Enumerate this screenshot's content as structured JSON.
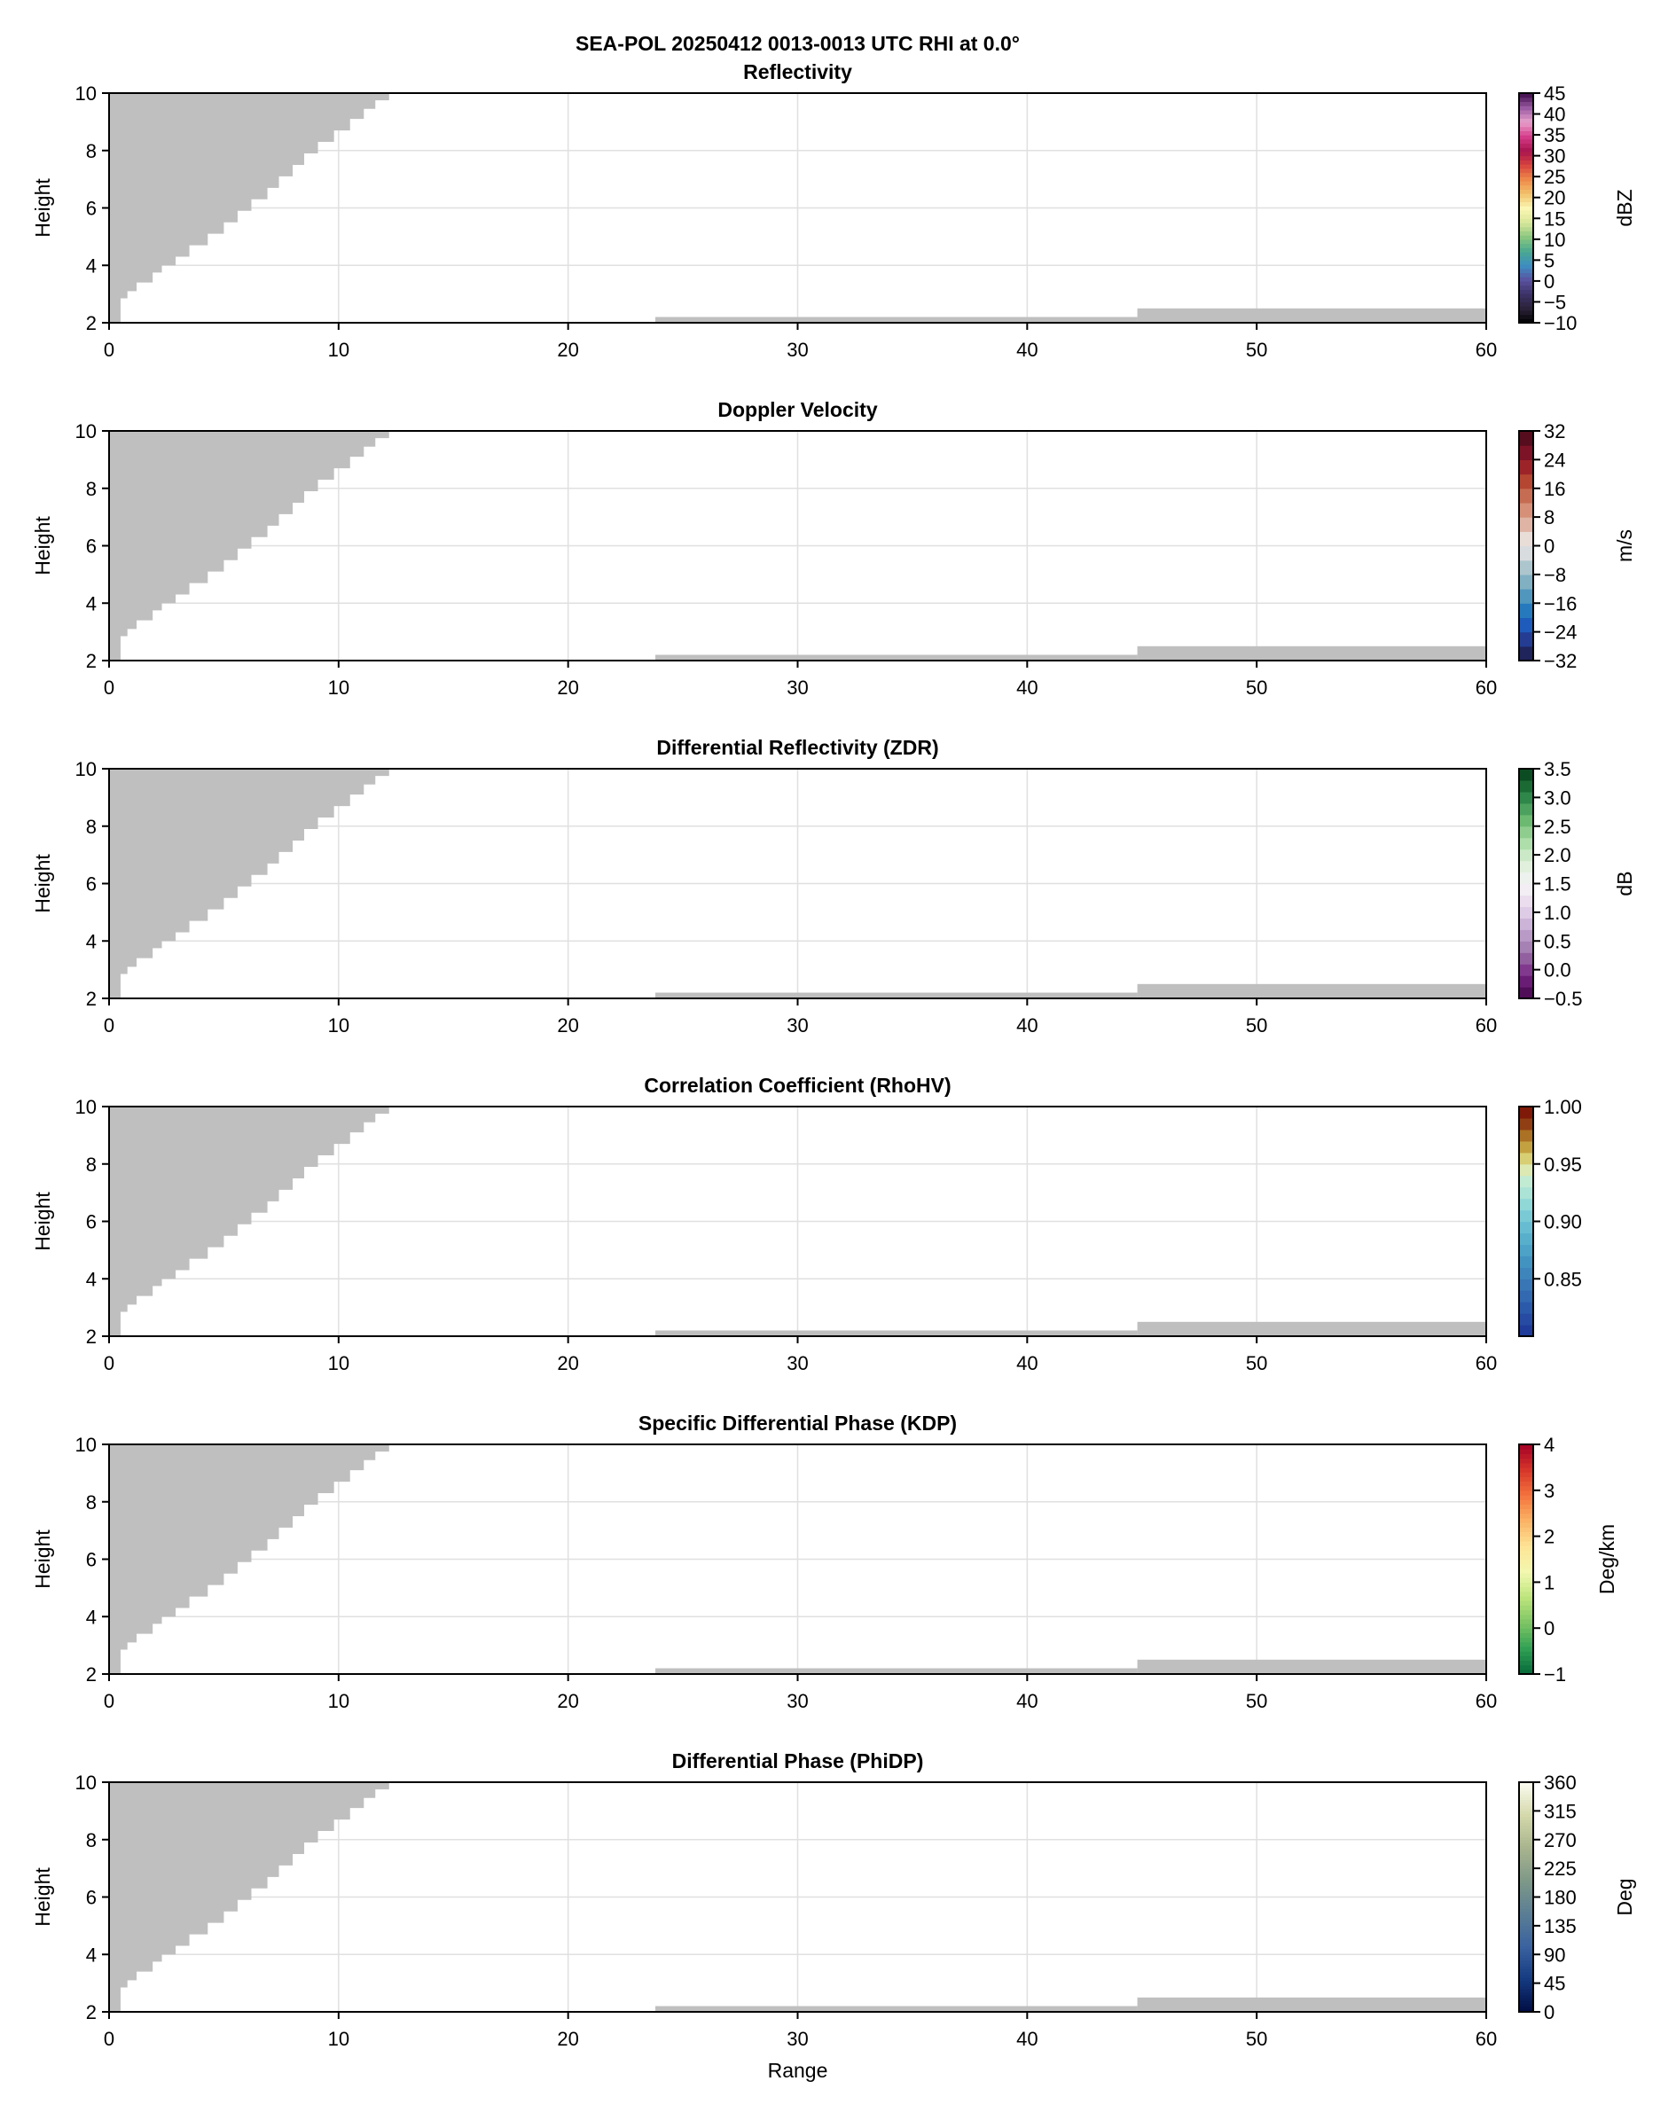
{
  "figure_title": "SEA-POL 20250412 0013-0013 UTC RHI at 0.0°",
  "chart_data": [
    {
      "type": "heatmap",
      "title": "Reflectivity",
      "xlabel": "",
      "ylabel": "Height",
      "xlim": [
        0,
        60
      ],
      "ylim": [
        2,
        10
      ],
      "xticks": [
        "0",
        "10",
        "20",
        "30",
        "40",
        "50",
        "60"
      ],
      "yticks": [
        "2",
        "4",
        "6",
        "8",
        "10"
      ],
      "grid": true,
      "colorbar": {
        "label": "dBZ",
        "range": [
          -10,
          45
        ],
        "ticks": [
          "45",
          "40",
          "35",
          "30",
          "25",
          "20",
          "15",
          "10",
          "5",
          "0",
          "−5",
          "−10"
        ],
        "tick_values": [
          45,
          40,
          35,
          30,
          25,
          20,
          15,
          10,
          5,
          0,
          -5,
          -10
        ],
        "levels": 55,
        "colors": [
          "#000000",
          "#2a2238",
          "#3c3266",
          "#5a52a0",
          "#3d8ec2",
          "#4aa88f",
          "#8ac77f",
          "#d8e79a",
          "#fbf6b4",
          "#f2c26c",
          "#ee8a4a",
          "#d8443e",
          "#a8144e",
          "#d63c8a",
          "#e8a2cc",
          "#9a5aa2",
          "#3c0a48"
        ]
      }
    },
    {
      "type": "heatmap",
      "title": "Doppler Velocity",
      "xlabel": "",
      "ylabel": "Height",
      "xlim": [
        0,
        60
      ],
      "ylim": [
        2,
        10
      ],
      "xticks": [
        "0",
        "10",
        "20",
        "30",
        "40",
        "50",
        "60"
      ],
      "yticks": [
        "2",
        "4",
        "6",
        "8",
        "10"
      ],
      "grid": true,
      "colorbar": {
        "label": "m/s",
        "range": [
          -32,
          32
        ],
        "ticks": [
          "32",
          "24",
          "16",
          "8",
          "0",
          "−8",
          "−16",
          "−24",
          "−32"
        ],
        "tick_values": [
          32,
          24,
          16,
          8,
          0,
          -8,
          -16,
          -24,
          -32
        ],
        "levels": 16,
        "colors": [
          "#1a1a40",
          "#25307a",
          "#2250b8",
          "#1a70be",
          "#4690bc",
          "#78acc0",
          "#a8c4cc",
          "#d8dcde",
          "#eaddd8",
          "#deb0a0",
          "#d48a70",
          "#c2644a",
          "#ae3a28",
          "#92182a",
          "#6e1024",
          "#400a16"
        ]
      }
    },
    {
      "type": "heatmap",
      "title": "Differential Reflectivity (ZDR)",
      "xlabel": "",
      "ylabel": "Height",
      "xlim": [
        0,
        60
      ],
      "ylim": [
        2,
        10
      ],
      "xticks": [
        "0",
        "10",
        "20",
        "30",
        "40",
        "50",
        "60"
      ],
      "yticks": [
        "2",
        "4",
        "6",
        "8",
        "10"
      ],
      "grid": true,
      "colorbar": {
        "label": "dB",
        "range": [
          -0.5,
          3.5
        ],
        "ticks": [
          "3.5",
          "3.0",
          "2.5",
          "2.0",
          "1.5",
          "1.0",
          "0.5",
          "0.0",
          "−0.5"
        ],
        "tick_values": [
          3.5,
          3.0,
          2.5,
          2.0,
          1.5,
          1.0,
          0.5,
          0.0,
          -0.5
        ],
        "levels": 20,
        "colors": [
          "#44084e",
          "#5e1466",
          "#7a2888",
          "#8c5498",
          "#a07aae",
          "#b494c2",
          "#c8b0d6",
          "#dcc8e4",
          "#eadcec",
          "#f2eef4",
          "#eef2ee",
          "#e0f0dc",
          "#c8e8c4",
          "#a8dca4",
          "#88c888",
          "#62b468",
          "#42985a",
          "#247c3e",
          "#145c2a",
          "#043e1a"
        ]
      }
    },
    {
      "type": "heatmap",
      "title": "Correlation Coefficient (RhoHV)",
      "xlabel": "",
      "ylabel": "Height",
      "xlim": [
        0,
        60
      ],
      "ylim": [
        2,
        10
      ],
      "xticks": [
        "0",
        "10",
        "20",
        "30",
        "40",
        "50",
        "60"
      ],
      "yticks": [
        "2",
        "4",
        "6",
        "8",
        "10"
      ],
      "grid": true,
      "colorbar": {
        "label": "",
        "range": [
          0.8,
          1.0
        ],
        "ticks": [
          "1.00",
          "0.95",
          "0.90",
          "0.85"
        ],
        "tick_values": [
          1.0,
          0.95,
          0.9,
          0.85
        ],
        "levels": 20,
        "colors": [
          "#1c3494",
          "#2444a0",
          "#2a54a8",
          "#3064ae",
          "#3672b4",
          "#3c82ba",
          "#4290c0",
          "#4aa0c6",
          "#56aecc",
          "#66bcd2",
          "#7acad6",
          "#92d8d8",
          "#aee4d6",
          "#c6ecd4",
          "#e2e8a8",
          "#d4c460",
          "#bc9030",
          "#a05e1c",
          "#84260c",
          "#7a1004"
        ]
      }
    },
    {
      "type": "heatmap",
      "title": "Specific Differential Phase (KDP)",
      "xlabel": "",
      "ylabel": "Height",
      "xlim": [
        0,
        60
      ],
      "ylim": [
        2,
        10
      ],
      "xticks": [
        "0",
        "10",
        "20",
        "30",
        "40",
        "50",
        "60"
      ],
      "yticks": [
        "2",
        "4",
        "6",
        "8",
        "10"
      ],
      "grid": true,
      "colorbar": {
        "label": "Deg/km",
        "range": [
          -1,
          4
        ],
        "ticks": [
          "4",
          "3",
          "2",
          "1",
          "0",
          "−1"
        ],
        "tick_values": [
          4,
          3,
          2,
          1,
          0,
          -1
        ],
        "levels": 50,
        "colors": [
          "#066838",
          "#30a054",
          "#7cc464",
          "#bce47c",
          "#f2f8b0",
          "#fee496",
          "#fbb466",
          "#f4743e",
          "#d6362a",
          "#a40026"
        ]
      }
    },
    {
      "type": "heatmap",
      "title": "Differential Phase (PhiDP)",
      "xlabel": "Range",
      "ylabel": "Height",
      "xlim": [
        0,
        60
      ],
      "ylim": [
        2,
        10
      ],
      "xticks": [
        "0",
        "10",
        "20",
        "30",
        "40",
        "50",
        "60"
      ],
      "yticks": [
        "2",
        "4",
        "6",
        "8",
        "10"
      ],
      "grid": true,
      "colorbar": {
        "label": "Deg",
        "range": [
          0,
          360
        ],
        "ticks": [
          "360",
          "315",
          "270",
          "225",
          "180",
          "135",
          "90",
          "45",
          "0"
        ],
        "tick_values": [
          360,
          315,
          270,
          225,
          180,
          135,
          90,
          45,
          0
        ],
        "levels": 80,
        "colors": [
          "#000c42",
          "#153a80",
          "#3a62a0",
          "#5a7e94",
          "#7e9888",
          "#a8b48e",
          "#d4d8aa",
          "#fcfcf0"
        ]
      }
    }
  ],
  "no_data": {
    "color": "#bfbfbf",
    "upper_left_boundary": [
      [
        0.5,
        2.0
      ],
      [
        0.5,
        2.7
      ],
      [
        0.8,
        2.85
      ],
      [
        1.2,
        3.1
      ],
      [
        1.9,
        3.4
      ],
      [
        2.3,
        3.75
      ],
      [
        2.9,
        4.0
      ],
      [
        3.5,
        4.3
      ],
      [
        4.3,
        4.7
      ],
      [
        5.0,
        5.1
      ],
      [
        5.6,
        5.5
      ],
      [
        6.2,
        5.9
      ],
      [
        6.9,
        6.3
      ],
      [
        7.4,
        6.7
      ],
      [
        8.0,
        7.1
      ],
      [
        8.5,
        7.5
      ],
      [
        9.1,
        7.9
      ],
      [
        9.8,
        8.3
      ],
      [
        10.5,
        8.7
      ],
      [
        11.1,
        9.1
      ],
      [
        11.6,
        9.45
      ],
      [
        12.2,
        9.75
      ],
      [
        12.8,
        10.0
      ]
    ],
    "surface_bands": [
      {
        "range": [
          23.8,
          44.8
        ],
        "top": 2.2
      },
      {
        "range": [
          44.8,
          60
        ],
        "top": 2.5
      }
    ]
  }
}
